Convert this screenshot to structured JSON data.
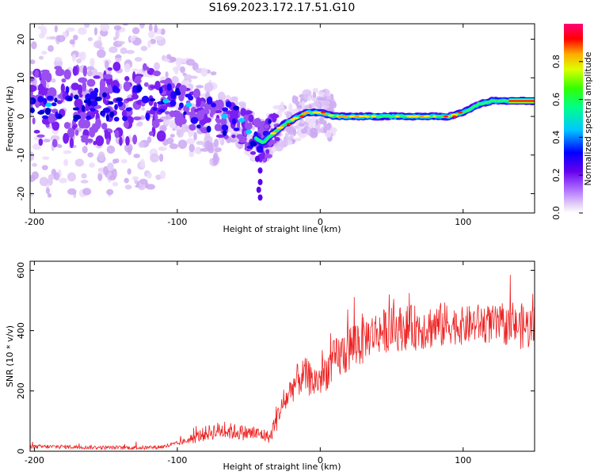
{
  "title": "S169.2023.172.17.51.G10",
  "chart_data": [
    {
      "type": "heatmap",
      "xlabel": "Height of straight line (km)",
      "ylabel": "Frequency (Hz)",
      "xlim": [
        -203,
        150
      ],
      "ylim": [
        -25,
        24
      ],
      "xticks": [
        -200,
        -100,
        0,
        100
      ],
      "yticks": [
        -20,
        -10,
        0,
        10,
        20
      ],
      "colorbar": {
        "label": "Normalized spectral amplitude",
        "range": [
          0.0,
          1.0
        ],
        "ticks": [
          "0.0",
          "0.2",
          "0.4",
          "0.6",
          "0.8"
        ],
        "colormap": "rainbow (white-lavender → violet → blue → cyan → green → yellow → red → magenta)"
      },
      "ridge_frequency_hz": {
        "x": [
          -203,
          -180,
          -150,
          -120,
          -105,
          -90,
          -75,
          -60,
          -50,
          -40,
          -35,
          -25,
          -15,
          -10,
          -5,
          0,
          10,
          30,
          60,
          90,
          100,
          110,
          120,
          130,
          150
        ],
        "y": [
          3,
          3,
          3,
          4,
          4,
          2,
          0,
          -1,
          -4,
          -7,
          -5,
          -2,
          0,
          1,
          1,
          1,
          0,
          0,
          0,
          0,
          1,
          3,
          4,
          4,
          4
        ]
      },
      "grid": false
    },
    {
      "type": "line",
      "xlabel": "Height of straight line (km)",
      "ylabel": "SNR (10 * v/v)",
      "xlim": [
        -203,
        150
      ],
      "ylim": [
        0,
        630
      ],
      "xticks": [
        -200,
        -100,
        0,
        100
      ],
      "yticks": [
        0,
        200,
        400,
        600
      ],
      "color": "#ee2222",
      "series_envelope": {
        "x": [
          -203,
          -180,
          -150,
          -120,
          -110,
          -100,
          -90,
          -80,
          -70,
          -60,
          -50,
          -40,
          -35,
          -30,
          -25,
          -20,
          -15,
          -10,
          -5,
          0,
          5,
          10,
          15,
          20,
          25,
          30,
          40,
          50,
          60,
          70,
          80,
          90,
          100,
          110,
          120,
          130,
          140,
          150
        ],
        "y": [
          15,
          15,
          12,
          12,
          15,
          25,
          40,
          60,
          70,
          65,
          60,
          55,
          45,
          120,
          160,
          210,
          240,
          250,
          230,
          240,
          270,
          300,
          320,
          340,
          360,
          375,
          395,
          405,
          410,
          410,
          415,
          420,
          415,
          425,
          420,
          415,
          415,
          410
        ]
      },
      "grid": false
    }
  ]
}
